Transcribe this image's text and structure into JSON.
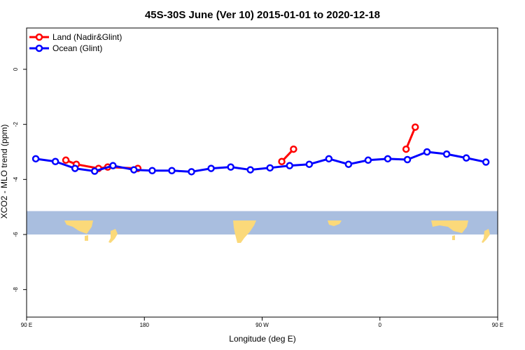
{
  "chart_data": {
    "type": "line",
    "title": "45S-30S June (Ver 10)   2015-01-01 to 2020-12-18",
    "xlabel": "Longitude (deg E)",
    "ylabel": "XCO2 - MLO trend (ppm)",
    "xlim": [
      90,
      450
    ],
    "ylim": [
      -9,
      1.5
    ],
    "x_ticks": [
      {
        "value": 90,
        "label": "90 E"
      },
      {
        "value": 180,
        "label": "180"
      },
      {
        "value": 270,
        "label": "90 W"
      },
      {
        "value": 360,
        "label": "0"
      },
      {
        "value": 450,
        "label": "90 E"
      },
      {
        "value": 540,
        "label": "180"
      }
    ],
    "y_ticks": [
      {
        "value": 0,
        "label": "0"
      },
      {
        "value": -2,
        "label": "-2"
      },
      {
        "value": -4,
        "label": "-4"
      },
      {
        "value": -6,
        "label": "-6"
      },
      {
        "value": -8,
        "label": "-8"
      }
    ],
    "legend_position": "top-left",
    "grid": false,
    "map_band": {
      "y_range": [
        -6.0,
        -5.15
      ],
      "ocean_color": "#a9bedf",
      "land_color": "#fbd97a"
    },
    "series": [
      {
        "name": "Land (Nadir&Glint)",
        "color": "#ff0000",
        "segments": [
          {
            "x": [
              120,
              128,
              145,
              152,
              175
            ],
            "y": [
              -3.3,
              -3.45,
              -3.6,
              -3.55,
              -3.6
            ]
          },
          {
            "x": [
              285,
              294
            ],
            "y": [
              -3.35,
              -2.9
            ]
          },
          {
            "x": [
              380,
              387
            ],
            "y": [
              -2.9,
              -2.1
            ]
          },
          {
            "x": [
              482,
              490,
              500,
              509,
              537
            ],
            "y": [
              -3.3,
              -3.45,
              -3.6,
              -3.55,
              -3.6
            ]
          }
        ]
      },
      {
        "name": "Ocean (Glint)",
        "color": "#0000ff",
        "segments": [
          {
            "x": [
              97,
              112,
              127,
              142,
              156,
              172,
              186,
              201,
              216,
              231,
              246,
              261,
              276,
              291,
              306,
              321,
              336,
              351,
              366,
              381,
              396,
              411,
              426,
              441,
              456,
              471,
              486,
              501,
              516,
              530
            ],
            "y": [
              -3.25,
              -3.35,
              -3.6,
              -3.7,
              -3.5,
              -3.65,
              -3.68,
              -3.68,
              -3.72,
              -3.6,
              -3.55,
              -3.65,
              -3.58,
              -3.5,
              -3.45,
              -3.25,
              -3.45,
              -3.3,
              -3.25,
              -3.28,
              -3.0,
              -3.08,
              -3.22,
              -3.37,
              -3.28,
              -3.35,
              -3.62,
              -3.7,
              -3.5,
              -3.65
            ]
          }
        ]
      }
    ]
  }
}
